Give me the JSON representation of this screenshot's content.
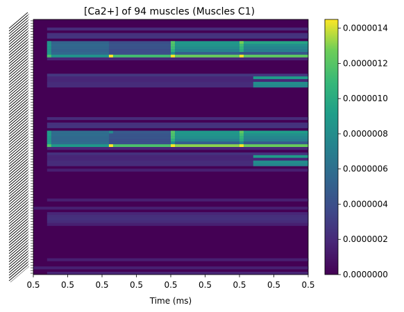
{
  "chart_data": {
    "type": "heatmap",
    "title": "[Ca2+] of 94 muscles (Muscles C1)",
    "xlabel": "Time (ms)",
    "ylabel": "",
    "x_tick_labels": [
      "0.5",
      "0.5",
      "0.5",
      "0.5",
      "0.5",
      "0.5",
      "0.5",
      "0.5",
      "0.5"
    ],
    "y_tick_count": 94,
    "colormap": "viridis",
    "colorbar": {
      "vmin": 0.0,
      "vmax": 1.45e-06,
      "tick_labels": [
        "0.0000000",
        "0.0000002",
        "0.0000004",
        "0.0000006",
        "0.0000008",
        "0.0000010",
        "0.0000012",
        "0.0000014"
      ],
      "tick_values": [
        0.0,
        2e-07,
        4e-07,
        6e-07,
        8e-07,
        1e-06,
        1.2e-06,
        1.4e-06
      ]
    },
    "n_rows": 94,
    "n_cols": 40,
    "pulse_onsets": [
      2,
      11,
      20,
      30
    ],
    "heat_runs": [
      {
        "rows": [
          3
        ],
        "runs": [
          [
            2,
            40,
            0.14
          ]
        ]
      },
      {
        "rows": [
          5
        ],
        "runs": [
          [
            2,
            40,
            0.16
          ]
        ]
      },
      {
        "rows": [
          6
        ],
        "runs": [
          [
            2,
            40,
            0.17
          ]
        ]
      },
      {
        "rows": [
          8
        ],
        "runs": [
          [
            2,
            11,
            0.36
          ],
          [
            11,
            20,
            0.28
          ],
          [
            20,
            30,
            0.6
          ],
          [
            30,
            40,
            0.66
          ]
        ]
      },
      {
        "rows": [
          9
        ],
        "runs": [
          [
            2,
            11,
            0.38
          ],
          [
            11,
            20,
            0.3
          ],
          [
            20,
            30,
            0.58
          ],
          [
            30,
            40,
            0.56
          ]
        ]
      },
      {
        "rows": [
          10
        ],
        "runs": [
          [
            2,
            11,
            0.37
          ],
          [
            11,
            20,
            0.29
          ],
          [
            20,
            30,
            0.55
          ],
          [
            30,
            40,
            0.52
          ]
        ]
      },
      {
        "rows": [
          11
        ],
        "runs": [
          [
            2,
            11,
            0.36
          ],
          [
            11,
            20,
            0.27
          ],
          [
            20,
            30,
            0.5
          ],
          [
            30,
            40,
            0.48
          ]
        ]
      },
      {
        "rows": [
          12
        ],
        "runs": [
          [
            2,
            11,
            0.38
          ],
          [
            11,
            20,
            0.27
          ],
          [
            20,
            30,
            0.34
          ],
          [
            30,
            40,
            0.3
          ]
        ]
      },
      {
        "rows": [
          13
        ],
        "runs": [
          [
            2,
            11,
            0.58
          ],
          [
            11,
            20,
            0.78
          ],
          [
            20,
            30,
            0.86
          ],
          [
            30,
            40,
            0.84
          ]
        ]
      },
      {
        "rows": [
          14
        ],
        "runs": [
          [
            2,
            40,
            0.12
          ]
        ]
      },
      {
        "rows": [
          20
        ],
        "runs": [
          [
            2,
            40,
            0.18
          ]
        ]
      },
      {
        "rows": [
          21
        ],
        "runs": [
          [
            2,
            32,
            0.12
          ],
          [
            32,
            40,
            0.62
          ]
        ]
      },
      {
        "rows": [
          22
        ],
        "runs": [
          [
            2,
            40,
            0.12
          ]
        ]
      },
      {
        "rows": [
          23
        ],
        "runs": [
          [
            2,
            32,
            0.14
          ],
          [
            32,
            40,
            0.55
          ]
        ]
      },
      {
        "rows": [
          24
        ],
        "runs": [
          [
            2,
            32,
            0.14
          ],
          [
            32,
            40,
            0.52
          ]
        ]
      },
      {
        "rows": [
          36
        ],
        "runs": [
          [
            2,
            40,
            0.14
          ]
        ]
      },
      {
        "rows": [
          38
        ],
        "runs": [
          [
            2,
            40,
            0.16
          ]
        ]
      },
      {
        "rows": [
          39
        ],
        "runs": [
          [
            2,
            40,
            0.17
          ]
        ]
      },
      {
        "rows": [
          41
        ],
        "runs": [
          [
            2,
            11,
            0.4
          ],
          [
            11,
            20,
            0.32
          ],
          [
            20,
            30,
            0.6
          ],
          [
            30,
            40,
            0.62
          ]
        ]
      },
      {
        "rows": [
          42
        ],
        "runs": [
          [
            2,
            11,
            0.4
          ],
          [
            11,
            20,
            0.3
          ],
          [
            20,
            30,
            0.58
          ],
          [
            30,
            40,
            0.56
          ]
        ]
      },
      {
        "rows": [
          43
        ],
        "runs": [
          [
            2,
            11,
            0.38
          ],
          [
            11,
            20,
            0.3
          ],
          [
            20,
            30,
            0.56
          ],
          [
            30,
            40,
            0.52
          ]
        ]
      },
      {
        "rows": [
          44
        ],
        "runs": [
          [
            2,
            11,
            0.38
          ],
          [
            11,
            20,
            0.28
          ],
          [
            20,
            30,
            0.5
          ],
          [
            30,
            40,
            0.48
          ]
        ]
      },
      {
        "rows": [
          45
        ],
        "runs": [
          [
            2,
            11,
            0.4
          ],
          [
            11,
            20,
            0.28
          ],
          [
            20,
            30,
            0.34
          ],
          [
            30,
            40,
            0.32
          ]
        ]
      },
      {
        "rows": [
          46
        ],
        "runs": [
          [
            2,
            11,
            0.6
          ],
          [
            11,
            20,
            0.8
          ],
          [
            20,
            30,
            0.9
          ],
          [
            30,
            40,
            0.86
          ]
        ]
      },
      {
        "rows": [
          47
        ],
        "runs": [
          [
            2,
            40,
            0.12
          ]
        ]
      },
      {
        "rows": [
          49
        ],
        "runs": [
          [
            2,
            40,
            0.16
          ]
        ]
      },
      {
        "rows": [
          50
        ],
        "runs": [
          [
            2,
            32,
            0.12
          ],
          [
            32,
            40,
            0.62
          ]
        ]
      },
      {
        "rows": [
          51
        ],
        "runs": [
          [
            2,
            40,
            0.12
          ]
        ]
      },
      {
        "rows": [
          52
        ],
        "runs": [
          [
            2,
            32,
            0.14
          ],
          [
            32,
            40,
            0.55
          ]
        ]
      },
      {
        "rows": [
          53
        ],
        "runs": [
          [
            2,
            32,
            0.14
          ],
          [
            32,
            40,
            0.52
          ]
        ]
      },
      {
        "rows": [
          55
        ],
        "runs": [
          [
            2,
            40,
            0.1
          ]
        ]
      },
      {
        "rows": [
          66
        ],
        "runs": [
          [
            2,
            40,
            0.1
          ]
        ]
      },
      {
        "rows": [
          69
        ],
        "runs": [
          [
            0,
            40,
            0.1
          ]
        ]
      },
      {
        "rows": [
          71
        ],
        "runs": [
          [
            2,
            40,
            0.12
          ]
        ]
      },
      {
        "rows": [
          72
        ],
        "runs": [
          [
            2,
            40,
            0.15
          ]
        ]
      },
      {
        "rows": [
          73
        ],
        "runs": [
          [
            2,
            40,
            0.16
          ]
        ]
      },
      {
        "rows": [
          74
        ],
        "runs": [
          [
            2,
            40,
            0.14
          ]
        ]
      },
      {
        "rows": [
          75
        ],
        "runs": [
          [
            2,
            40,
            0.1
          ]
        ]
      },
      {
        "rows": [
          88
        ],
        "runs": [
          [
            2,
            40,
            0.1
          ]
        ]
      },
      {
        "rows": [
          91
        ],
        "runs": [
          [
            0,
            40,
            0.1
          ]
        ]
      },
      {
        "rows": [
          93
        ],
        "runs": [
          [
            2,
            40,
            0.12
          ]
        ]
      }
    ]
  }
}
